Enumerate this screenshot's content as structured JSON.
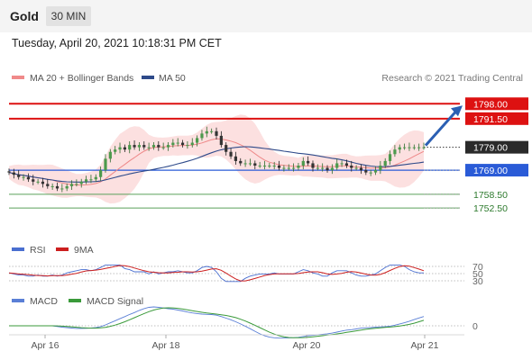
{
  "header": {
    "symbol": "Gold",
    "timeframe": "30 MIN"
  },
  "timestamp": "Tuesday, April 20, 2021 10:18:31 PM CET",
  "legend_main": [
    {
      "label": "MA 20 + Bollinger Bands",
      "color": "#f08a8a"
    },
    {
      "label": "MA 50",
      "color": "#2e4a8a"
    }
  ],
  "copyright": "Research © 2021 Trading Central",
  "legend_rsi": [
    {
      "label": "RSI",
      "color": "#4a6fd0"
    },
    {
      "label": "9MA",
      "color": "#cc1f1f"
    }
  ],
  "legend_macd": [
    {
      "label": "MACD",
      "color": "#5a7fd6"
    },
    {
      "label": "MACD Signal",
      "color": "#3a9a3a"
    }
  ],
  "chart_data": {
    "type": "line",
    "subtype": "candlestick",
    "x_ticks": [
      "Apr 16",
      "Apr 18",
      "Apr 20",
      "Apr 21"
    ],
    "y_range": [
      1738,
      1804
    ],
    "current_price": "1779.00",
    "price_levels": [
      {
        "value": 1798.0,
        "label": "1798.00",
        "kind": "resistance",
        "color": "#dd1111"
      },
      {
        "value": 1791.5,
        "label": "1791.50",
        "kind": "resistance",
        "color": "#dd1111"
      },
      {
        "value": 1769.0,
        "label": "1769.00",
        "kind": "pivot",
        "color": "#2a5bd7"
      },
      {
        "value": 1758.5,
        "label": "1758.50",
        "kind": "support",
        "color": "#5aa05a"
      },
      {
        "value": 1752.5,
        "label": "1752.50",
        "kind": "support",
        "color": "#5aa05a"
      }
    ],
    "rsi_levels": [
      "70",
      "50",
      "30"
    ],
    "macd_levels": [
      "0"
    ],
    "close_series": [
      1768,
      1767,
      1766,
      1766,
      1765,
      1764,
      1764,
      1763,
      1762,
      1762,
      1761,
      1761,
      1762,
      1763,
      1763,
      1764,
      1765,
      1765,
      1766,
      1769,
      1774,
      1777,
      1778,
      1779,
      1778,
      1780,
      1779,
      1780,
      1779,
      1779,
      1780,
      1779,
      1779,
      1780,
      1781,
      1781,
      1780,
      1780,
      1781,
      1783,
      1785,
      1786,
      1786,
      1784,
      1780,
      1777,
      1775,
      1773,
      1772,
      1772,
      1772,
      1771,
      1771,
      1771,
      1771,
      1771,
      1770,
      1770,
      1770,
      1770,
      1771,
      1773,
      1772,
      1770,
      1770,
      1770,
      1769,
      1770,
      1772,
      1772,
      1771,
      1770,
      1770,
      1769,
      1768,
      1768,
      1769,
      1771,
      1773,
      1776,
      1778,
      1779,
      1779,
      1779,
      1779,
      1779,
      1779
    ]
  }
}
